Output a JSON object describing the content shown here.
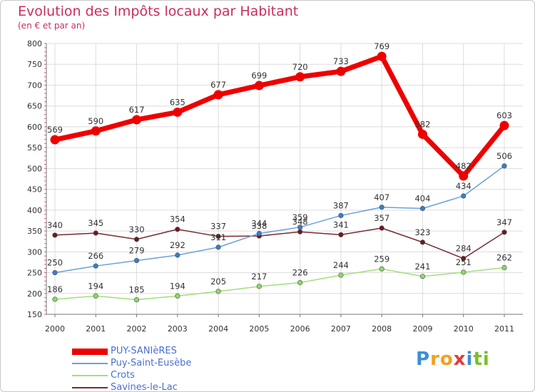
{
  "header": {
    "title": "Evolution des Impôts locaux par Habitant",
    "subtitle": "(en € et par an)"
  },
  "logo": {
    "letters": [
      "P",
      "r",
      "o",
      "x",
      "i",
      "t",
      "i"
    ],
    "colors": [
      "#3a8fd8",
      "#f2a01e",
      "#f2a01e",
      "#e23b3b",
      "#3a8fd8",
      "#7bbf2a",
      "#7bbf2a"
    ]
  },
  "chart_data": {
    "type": "line",
    "title": "Evolution des Impôts locaux par Habitant",
    "subtitle": "(en € et par an)",
    "categories": [
      "2000",
      "2001",
      "2002",
      "2003",
      "2004",
      "2005",
      "2006",
      "2007",
      "2008",
      "2009",
      "2010",
      "2011"
    ],
    "ylim": [
      150,
      800
    ],
    "yticks": [
      150,
      200,
      250,
      300,
      350,
      400,
      450,
      500,
      550,
      600,
      650,
      700,
      750,
      800
    ],
    "grid": true,
    "legend_position": "bottom-left",
    "series": [
      {
        "name": "PUY-SANIèRES",
        "color": "#ee0000",
        "marker": "#ee0000",
        "width": "thick",
        "values": [
          569,
          590,
          617,
          635,
          677,
          699,
          720,
          733,
          769,
          582,
          482,
          603
        ]
      },
      {
        "name": "Puy-Saint-Eusèbe",
        "color": "#6aa0d8",
        "marker": "#3a7cc8",
        "width": "thin",
        "values": [
          250,
          266,
          279,
          292,
          311,
          344,
          359,
          387,
          407,
          404,
          434,
          506
        ]
      },
      {
        "name": "Crots",
        "color": "#9fe07a",
        "marker": "#8ed860",
        "width": "thin",
        "values": [
          186,
          194,
          185,
          194,
          205,
          217,
          226,
          244,
          259,
          241,
          251,
          262
        ]
      },
      {
        "name": "Savines-le-Lac",
        "color": "#7a2a30",
        "marker": "#6a1a22",
        "width": "thin",
        "values": [
          340,
          345,
          330,
          354,
          337,
          338,
          348,
          341,
          357,
          323,
          284,
          347
        ]
      }
    ]
  }
}
